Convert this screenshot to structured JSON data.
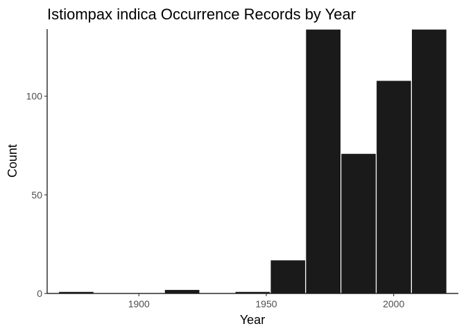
{
  "chart_data": {
    "type": "bar",
    "title": "Istiompax indica Occurrence Records by Year",
    "xlabel": "Year",
    "ylabel": "Count",
    "bin_width": 13.85,
    "bins": [
      {
        "start": 1868.5,
        "count": 1
      },
      {
        "start": 1882.35,
        "count": 0
      },
      {
        "start": 1896.2,
        "count": 0
      },
      {
        "start": 1910.05,
        "count": 2
      },
      {
        "start": 1923.9,
        "count": 0
      },
      {
        "start": 1937.75,
        "count": 1
      },
      {
        "start": 1951.6,
        "count": 17
      },
      {
        "start": 1965.45,
        "count": 134
      },
      {
        "start": 1979.3,
        "count": 71
      },
      {
        "start": 1993.15,
        "count": 108
      },
      {
        "start": 2007.0,
        "count": 134
      }
    ],
    "xlim": [
      1864.0,
      2025.4
    ],
    "ylim": [
      0,
      134
    ],
    "xticks": [
      1900,
      1950,
      2000
    ],
    "yticks": [
      0,
      50,
      100
    ],
    "grid": false,
    "bar_fill": "#1a1a1a",
    "bar_edge": "#ffffff"
  }
}
